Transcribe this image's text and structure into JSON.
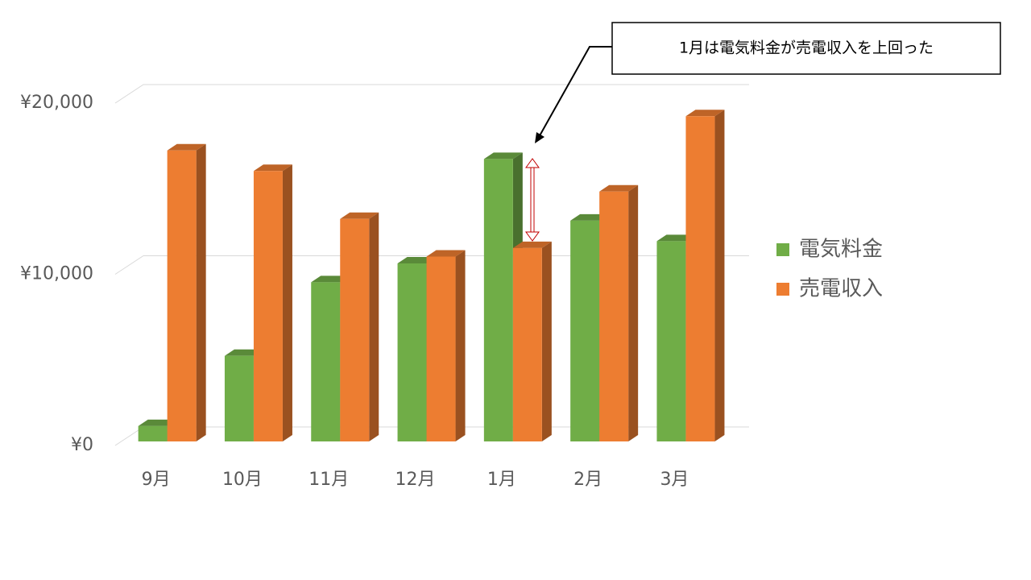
{
  "chart_data": {
    "type": "bar",
    "categories": [
      "9月",
      "10月",
      "11月",
      "12月",
      "1月",
      "2月",
      "3月"
    ],
    "series": [
      {
        "name": "電気料金",
        "color": "#70ad47",
        "values": [
          900,
          5000,
          9300,
          10400,
          16500,
          12900,
          11700
        ]
      },
      {
        "name": "売電収入",
        "color": "#ed7d31",
        "values": [
          17000,
          15800,
          13000,
          10800,
          11300,
          14600,
          19000
        ]
      }
    ],
    "ylim": [
      0,
      20000
    ],
    "yticks": [
      {
        "value": 0,
        "label": "¥0"
      },
      {
        "value": 10000,
        "label": "¥10,000"
      },
      {
        "value": 20000,
        "label": "¥20,000"
      }
    ],
    "grid": true,
    "legend": "right",
    "annotation": "1月は電気料金が売電収入を上回った"
  }
}
